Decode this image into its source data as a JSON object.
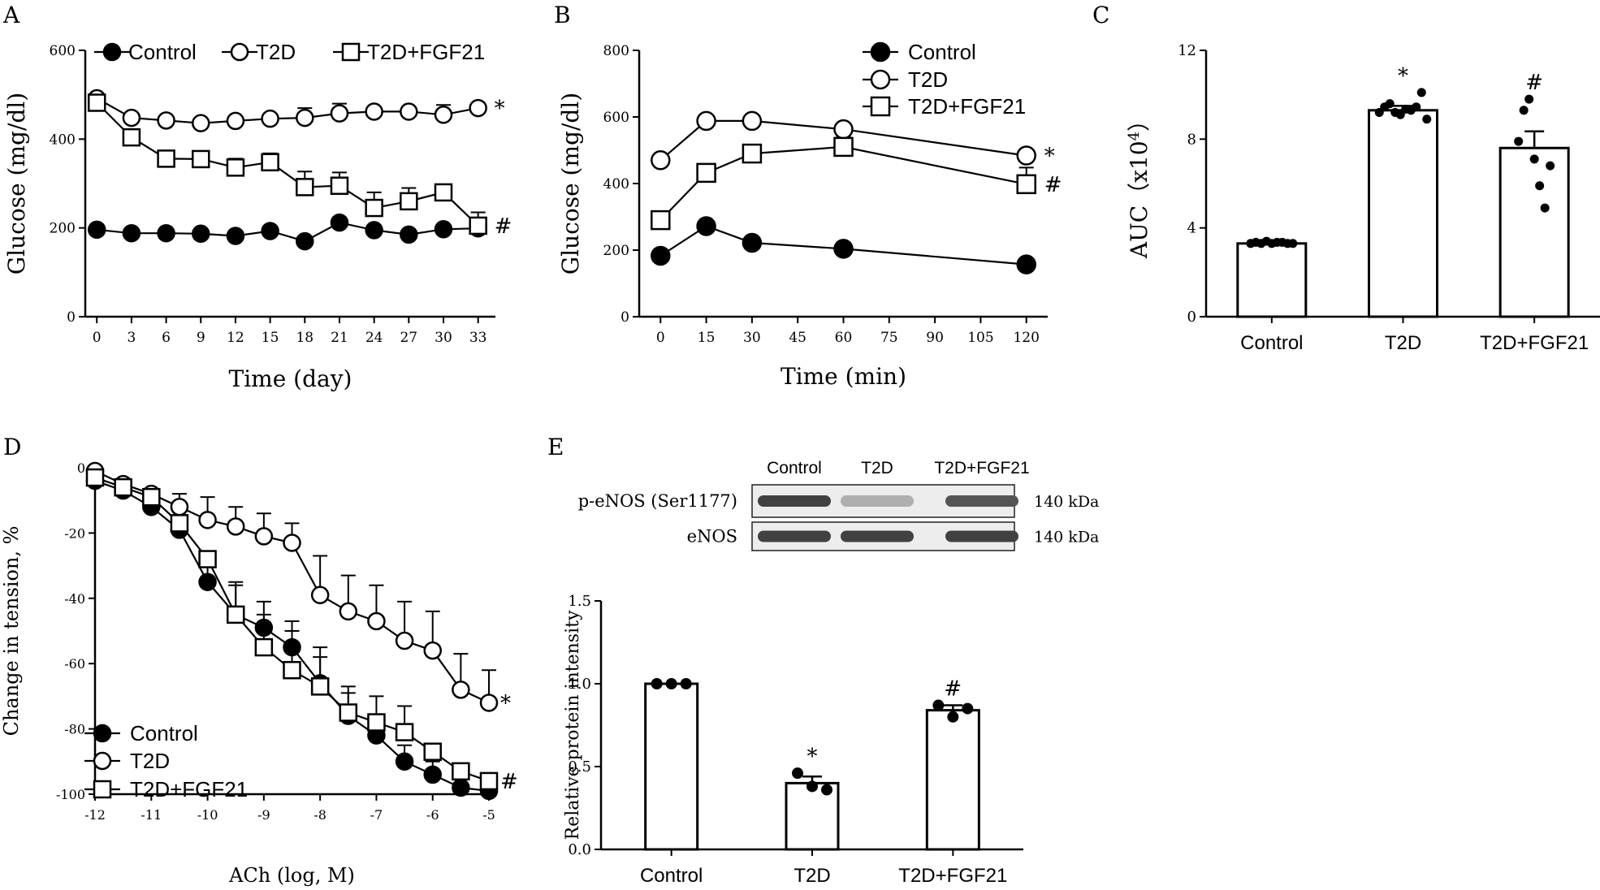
{
  "chart_data": [
    {
      "panel": "A",
      "type": "line",
      "xlabel": "Time (day)",
      "ylabel": "Glucose (mg/dl)",
      "xlim": [
        -1,
        34.5
      ],
      "ylim": [
        0,
        600
      ],
      "xticks": [
        0,
        3,
        6,
        9,
        12,
        15,
        18,
        21,
        24,
        27,
        30,
        33
      ],
      "yticks": [
        0,
        200,
        400,
        600
      ],
      "legend_position": "top",
      "annotations": [
        {
          "series": "T2D",
          "text": "*"
        },
        {
          "series": "T2D+FGF21",
          "text": "#"
        }
      ],
      "series": [
        {
          "name": "Control",
          "marker": "filled-circle",
          "x": [
            0,
            3,
            6,
            9,
            12,
            15,
            18,
            21,
            24,
            27,
            30,
            33
          ],
          "values": [
            196,
            188,
            188,
            187,
            182,
            193,
            170,
            212,
            195,
            185,
            197,
            199
          ],
          "err": [
            0,
            0,
            0,
            0,
            10,
            0,
            0,
            10,
            10,
            10,
            0,
            20
          ]
        },
        {
          "name": "T2D",
          "marker": "open-circle",
          "x": [
            0,
            3,
            6,
            9,
            12,
            15,
            18,
            21,
            24,
            27,
            30,
            33
          ],
          "values": [
            492,
            448,
            442,
            436,
            441,
            446,
            448,
            458,
            462,
            462,
            455,
            470
          ],
          "err": [
            0,
            0,
            0,
            0,
            0,
            0,
            22,
            22,
            0,
            0,
            22,
            0
          ]
        },
        {
          "name": "T2D+FGF21",
          "marker": "open-square",
          "x": [
            0,
            3,
            6,
            9,
            12,
            15,
            18,
            21,
            24,
            27,
            30,
            33
          ],
          "values": [
            482,
            404,
            356,
            355,
            336,
            348,
            292,
            295,
            245,
            260,
            280,
            205
          ],
          "err": [
            0,
            0,
            0,
            0,
            20,
            20,
            35,
            30,
            35,
            30,
            0,
            30
          ]
        }
      ]
    },
    {
      "panel": "B",
      "type": "line",
      "xlabel": "Time (min)",
      "ylabel": "Glucose (mg/dl)",
      "xlim": [
        -7,
        127
      ],
      "ylim": [
        0,
        800
      ],
      "xticks": [
        0,
        15,
        30,
        45,
        60,
        75,
        90,
        105,
        120
      ],
      "yticks": [
        0,
        200,
        400,
        600,
        800
      ],
      "legend_position": "top-right",
      "annotations": [
        {
          "series": "T2D",
          "text": "*"
        },
        {
          "series": "T2D+FGF21",
          "text": "#"
        }
      ],
      "series": [
        {
          "name": "Control",
          "marker": "filled-circle",
          "x": [
            0,
            15,
            30,
            60,
            120
          ],
          "values": [
            183,
            272,
            222,
            204,
            157
          ],
          "err": [
            0,
            0,
            0,
            0,
            0
          ]
        },
        {
          "name": "T2D",
          "marker": "open-circle",
          "x": [
            0,
            15,
            30,
            60,
            120
          ],
          "values": [
            470,
            588,
            588,
            563,
            484
          ],
          "err": [
            0,
            0,
            0,
            0,
            0
          ]
        },
        {
          "name": "T2D+FGF21",
          "marker": "open-square",
          "x": [
            0,
            15,
            30,
            60,
            120
          ],
          "values": [
            290,
            432,
            490,
            510,
            398
          ],
          "err": [
            0,
            0,
            25,
            30,
            50
          ]
        }
      ]
    },
    {
      "panel": "C",
      "type": "bar",
      "xlabel": "",
      "ylabel_prefix": "AUC（x10",
      "ylabel_exp": "4",
      "ylabel_suffix": "）",
      "ylim": [
        0,
        12
      ],
      "yticks": [
        0,
        4,
        8,
        12
      ],
      "categories": [
        "Control",
        "T2D",
        "T2D+FGF21"
      ],
      "values": [
        3.3,
        9.3,
        7.6
      ],
      "err": [
        0.05,
        0.2,
        0.75
      ],
      "annotations": [
        "",
        "*",
        "#"
      ],
      "points": [
        [
          3.3,
          3.35,
          3.3,
          3.4,
          3.3,
          3.35,
          3.35,
          3.3,
          3.3
        ],
        [
          9.2,
          9.45,
          9.6,
          9.2,
          9.1,
          9.35,
          9.3,
          9.45,
          10.1,
          8.9
        ],
        [
          7.9,
          9.3,
          9.8,
          7.1,
          5.9,
          4.9,
          6.8
        ]
      ]
    },
    {
      "panel": "D",
      "type": "line",
      "xlabel": "ACh (log, M)",
      "ylabel": "Change in tension, %",
      "xlim": [
        -12,
        -5
      ],
      "ylim": [
        -100,
        0
      ],
      "xticks": [
        -12,
        -11,
        -10,
        -9,
        -8,
        -7,
        -6,
        -5
      ],
      "yticks": [
        0,
        -20,
        -40,
        -60,
        -80,
        -100
      ],
      "legend_position": "bottom-left",
      "annotations": [
        {
          "series": "T2D",
          "text": "*"
        },
        {
          "series": "T2D+FGF21",
          "text": "#"
        }
      ],
      "series": [
        {
          "name": "Control",
          "marker": "filled-circle",
          "x": [
            -12,
            -11.5,
            -11,
            -10.5,
            -10,
            -9.5,
            -9,
            -8.5,
            -8,
            -7.5,
            -7,
            -6.5,
            -6,
            -5.5,
            -5
          ],
          "values": [
            -4,
            -7,
            -12,
            -19,
            -35,
            -45,
            -49,
            -55,
            -66,
            -76,
            -82,
            -90,
            -94,
            -98,
            -99
          ],
          "err": [
            0,
            0,
            0,
            4,
            6,
            9,
            8,
            8,
            8,
            7,
            6,
            5,
            4,
            0,
            0
          ]
        },
        {
          "name": "T2D",
          "marker": "open-circle",
          "x": [
            -12,
            -11.5,
            -11,
            -10.5,
            -10,
            -9.5,
            -9,
            -8.5,
            -8,
            -7.5,
            -7,
            -6.5,
            -6,
            -5.5,
            -5
          ],
          "values": [
            -1,
            -5,
            -8,
            -12,
            -16,
            -18,
            -21,
            -23,
            -39,
            -44,
            -47,
            -53,
            -56,
            -68,
            -72
          ],
          "err": [
            0,
            0,
            0,
            4,
            7,
            6,
            7,
            6,
            12,
            11,
            11,
            12,
            12,
            11,
            10
          ]
        },
        {
          "name": "T2D+FGF21",
          "marker": "open-square",
          "x": [
            -12,
            -11.5,
            -11,
            -10.5,
            -10,
            -9.5,
            -9,
            -8.5,
            -8,
            -7.5,
            -7,
            -6.5,
            -6,
            -5.5,
            -5
          ],
          "values": [
            -3,
            -6,
            -9,
            -17,
            -28,
            -45,
            -55,
            -62,
            -67,
            -75,
            -78,
            -81,
            -87,
            -93,
            -96
          ],
          "err": [
            0,
            0,
            0,
            0,
            0,
            10,
            10,
            12,
            12,
            8,
            8,
            8,
            0,
            0,
            0
          ]
        }
      ]
    },
    {
      "panel": "E",
      "type": "bar",
      "xlabel": "",
      "ylabel": "Relative protein intensity",
      "ylim": [
        0,
        1.5
      ],
      "yticks": [
        0.0,
        0.5,
        1.0,
        1.5
      ],
      "categories": [
        "Control",
        "T2D",
        "T2D+FGF21"
      ],
      "values": [
        1.0,
        0.4,
        0.84
      ],
      "err": [
        0,
        0.04,
        0.03
      ],
      "annotations": [
        "",
        "*",
        "#"
      ],
      "points": [
        [
          1.0,
          1.0,
          1.0
        ],
        [
          0.46,
          0.38,
          0.36
        ],
        [
          0.87,
          0.8,
          0.85
        ]
      ]
    }
  ],
  "panel_labels": {
    "a": "A",
    "b": "B",
    "c": "C",
    "d": "D",
    "e": "E"
  },
  "blot": {
    "lanes": [
      "Control",
      "T2D",
      "T2D+FGF21"
    ],
    "rows": [
      {
        "label": "p-eNOS (Ser1177)",
        "size": "140 kDa",
        "intensity": [
          0.85,
          0.3,
          0.75
        ]
      },
      {
        "label": "eNOS",
        "size": "140 kDa",
        "intensity": [
          0.85,
          0.85,
          0.85
        ]
      }
    ]
  }
}
